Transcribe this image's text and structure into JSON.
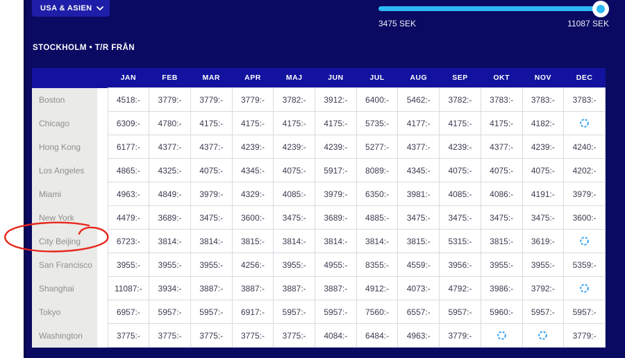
{
  "region_selector": {
    "label": "USA & ASIEN"
  },
  "price_slider": {
    "min_label": "3475 SEK",
    "max_label": "11087 SEK",
    "track_color": "#2cb9f4"
  },
  "route_heading": "STOCKHOLM • T/R FRÅN",
  "price_table": {
    "months": [
      "JAN",
      "FEB",
      "MAR",
      "APR",
      "MAJ",
      "JUN",
      "JUL",
      "AUG",
      "SEP",
      "OKT",
      "NOV",
      "DEC"
    ],
    "rows": [
      {
        "city": "Boston",
        "prices": [
          "4518:-",
          "3779:-",
          "3779:-",
          "3779:-",
          "3782:-",
          "3912:-",
          "6400:-",
          "5462:-",
          "3782:-",
          "3783:-",
          "3783:-",
          "3783:-"
        ]
      },
      {
        "city": "Chicago",
        "prices": [
          "6309:-",
          "4780:-",
          "4175:-",
          "4175:-",
          "4175:-",
          "4175:-",
          "5735:-",
          "4177:-",
          "4175:-",
          "4175:-",
          "4182:-",
          null
        ]
      },
      {
        "city": "Hong Kong",
        "prices": [
          "6177:-",
          "4377:-",
          "4377:-",
          "4239:-",
          "4239:-",
          "4239:-",
          "5277:-",
          "4377:-",
          "4239:-",
          "4377:-",
          "4239:-",
          "4240:-"
        ]
      },
      {
        "city": "Los Angeles",
        "prices": [
          "4865:-",
          "4325:-",
          "4075:-",
          "4345:-",
          "4075:-",
          "5917:-",
          "8089:-",
          "4345:-",
          "4075:-",
          "4075:-",
          "4075:-",
          "4202:-"
        ]
      },
      {
        "city": "Miami",
        "prices": [
          "4963:-",
          "4849:-",
          "3979:-",
          "4329:-",
          "4085:-",
          "3979:-",
          "6350:-",
          "3981:-",
          "4085:-",
          "4086:-",
          "4191:-",
          "3979:-"
        ]
      },
      {
        "city": "New York",
        "prices": [
          "4479:-",
          "3689:-",
          "3475:-",
          "3600:-",
          "3475:-",
          "3689:-",
          "4885:-",
          "3475:-",
          "3475:-",
          "3475:-",
          "3475:-",
          "3600:-"
        ]
      },
      {
        "city": "City Beijing",
        "prices": [
          "6723:-",
          "3814:-",
          "3814:-",
          "3815:-",
          "3814:-",
          "3814:-",
          "3814:-",
          "3815:-",
          "5315:-",
          "3815:-",
          "3619:-",
          null
        ]
      },
      {
        "city": "San Francisco",
        "prices": [
          "3955:-",
          "3955:-",
          "3955:-",
          "4256:-",
          "3955:-",
          "4955:-",
          "8355:-",
          "4559:-",
          "3956:-",
          "3955:-",
          "3955:-",
          "5359:-"
        ]
      },
      {
        "city": "Shanghai",
        "prices": [
          "11087:-",
          "3934:-",
          "3887:-",
          "3887:-",
          "3887:-",
          "3887:-",
          "4912:-",
          "4073:-",
          "4792:-",
          "3986:-",
          "3792:-",
          null
        ]
      },
      {
        "city": "Tokyo",
        "prices": [
          "6957:-",
          "5957:-",
          "5957:-",
          "6917:-",
          "5957:-",
          "5957:-",
          "7560:-",
          "6557:-",
          "5957:-",
          "5960:-",
          "5957:-",
          "5957:-"
        ]
      },
      {
        "city": "Washington",
        "prices": [
          "3775:-",
          "3775:-",
          "3775:-",
          "3775:-",
          "3775:-",
          "4084:-",
          "6484:-",
          "4963:-",
          "3779:-",
          null,
          null,
          "3779:-"
        ]
      }
    ]
  },
  "annotation": {
    "shape": "hand-drawn-ellipse",
    "highlighted_city": "City Beijing",
    "color": "#e8271c"
  },
  "colors": {
    "background_navy": "#0a0a62",
    "panel_blue": "#12129e",
    "dropdown_blue": "#1e1ea8",
    "slider_cyan": "#2cb9f4",
    "loading_icon_blue": "#2d9ff0",
    "city_column_gray": "#eaeae8"
  }
}
